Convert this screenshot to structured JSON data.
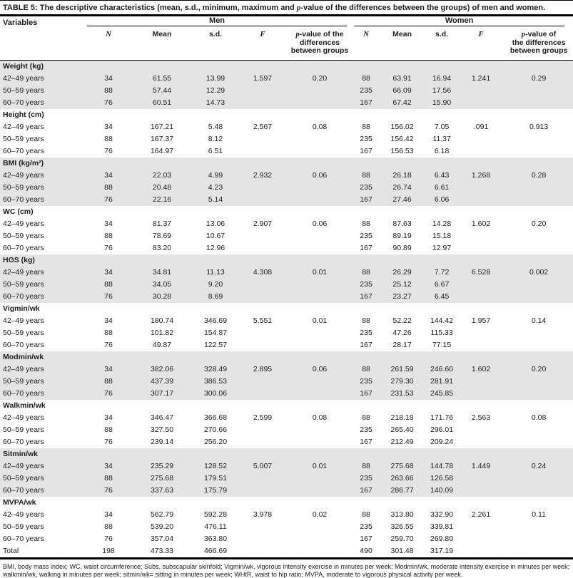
{
  "page": {
    "background_color": "#ffffff",
    "text_color": "#1d1d1b",
    "shade_color": "#e4e4e4"
  },
  "table": {
    "title": {
      "prefix": "TABLE 5:",
      "body_before_p": " The descriptive characteristics (mean, s.d., minimum, maximum and ",
      "p_italic": "p",
      "body_after_p": "-value of the differences between the groups) of men and women."
    },
    "header": {
      "variables": "Variables",
      "men": "Men",
      "women": "Women",
      "col_n": "N",
      "col_mean": "Mean",
      "col_sd": "s.d.",
      "col_f": "F",
      "p_char": "p",
      "men_p_lines": [
        "-value of the",
        "differences",
        "between groups"
      ],
      "women_p_lines": [
        "-value of",
        "the differences",
        "between groups"
      ]
    },
    "groups": [
      {
        "label": "Weight (kg)",
        "shaded": true,
        "rows": [
          {
            "label": "42–49 years",
            "men": [
              "34",
              "61.55",
              "13.99",
              "1.597",
              "0.20"
            ],
            "women": [
              "88",
              "63.91",
              "16.94",
              "1.241",
              "0.29"
            ]
          },
          {
            "label": "50–59 years",
            "men": [
              "88",
              "57.44",
              "12.29",
              "",
              ""
            ],
            "women": [
              "235",
              "66.09",
              "17.56",
              "",
              ""
            ]
          },
          {
            "label": "60–70 years",
            "men": [
              "76",
              "60.51",
              "14.73",
              "",
              ""
            ],
            "women": [
              "167",
              "67.42",
              "15.90",
              "",
              ""
            ]
          }
        ]
      },
      {
        "label": "Height (cm)",
        "shaded": false,
        "rows": [
          {
            "label": "42–49 years",
            "men": [
              "34",
              "167.21",
              "5.48",
              "2.567",
              "0.08"
            ],
            "women": [
              "88",
              "156.02",
              "7.05",
              ".091",
              "0.913"
            ]
          },
          {
            "label": "50–59 years",
            "men": [
              "88",
              "167.37",
              "8.12",
              "",
              ""
            ],
            "women": [
              "235",
              "156.42",
              "11.37",
              "",
              ""
            ]
          },
          {
            "label": "60–70 years",
            "men": [
              "76",
              "164.97",
              "6.51",
              "",
              ""
            ],
            "women": [
              "167",
              "156.53",
              "6.18",
              "",
              ""
            ]
          }
        ]
      },
      {
        "label": "BMI (kg/m²)",
        "shaded": true,
        "rows": [
          {
            "label": "42–49 years",
            "men": [
              "34",
              "22.03",
              "4.99",
              "2.932",
              "0.06"
            ],
            "women": [
              "88",
              "26.18",
              "6.43",
              "1.268",
              "0.28"
            ]
          },
          {
            "label": "50–59 years",
            "men": [
              "88",
              "20.48",
              "4.23",
              "",
              ""
            ],
            "women": [
              "235",
              "26.74",
              "6.61",
              "",
              ""
            ]
          },
          {
            "label": "60–70 years",
            "men": [
              "76",
              "22.16",
              "5.14",
              "",
              ""
            ],
            "women": [
              "167",
              "27.46",
              "6.06",
              "",
              ""
            ]
          }
        ]
      },
      {
        "label": "WC (cm)",
        "shaded": false,
        "rows": [
          {
            "label": "42–49 years",
            "men": [
              "34",
              "81.37",
              "13.06",
              "2.907",
              "0.06"
            ],
            "women": [
              "88",
              "87.63",
              "14.28",
              "1.602",
              "0.20"
            ]
          },
          {
            "label": "50–59 years",
            "men": [
              "88",
              "78.69",
              "10.67",
              "",
              ""
            ],
            "women": [
              "235",
              "89.19",
              "15.18",
              "",
              ""
            ]
          },
          {
            "label": "60–70 years",
            "men": [
              "76",
              "83.20",
              "12.96",
              "",
              ""
            ],
            "women": [
              "167",
              "90.89",
              "12.97",
              "",
              ""
            ]
          }
        ]
      },
      {
        "label": "HGS (kg)",
        "shaded": true,
        "rows": [
          {
            "label": "42–49 years",
            "men": [
              "34",
              "34.81",
              "11.13",
              "4.308",
              "0.01"
            ],
            "women": [
              "88",
              "26.29",
              "7.72",
              "6.528",
              "0.002"
            ]
          },
          {
            "label": "50–59 years",
            "men": [
              "88",
              "34.05",
              "9.20",
              "",
              ""
            ],
            "women": [
              "235",
              "25.12",
              "6.67",
              "",
              ""
            ]
          },
          {
            "label": "60–70 years",
            "men": [
              "76",
              "30.28",
              "8.69",
              "",
              ""
            ],
            "women": [
              "167",
              "23.27",
              "6.45",
              "",
              ""
            ]
          }
        ]
      },
      {
        "label": "Vigmin/wk",
        "shaded": false,
        "rows": [
          {
            "label": "42–49 years",
            "men": [
              "34",
              "180.74",
              "346.69",
              "5.551",
              "0.01"
            ],
            "women": [
              "88",
              "52.22",
              "144.42",
              "1.957",
              "0.14"
            ]
          },
          {
            "label": "50–59 years",
            "men": [
              "88",
              "101.82",
              "154.87",
              "",
              ""
            ],
            "women": [
              "235",
              "47.26",
              "115.33",
              "",
              ""
            ]
          },
          {
            "label": "60–70 years",
            "men": [
              "76",
              "49.87",
              "122.57",
              "",
              ""
            ],
            "women": [
              "167",
              "28.17",
              "77.15",
              "",
              ""
            ]
          }
        ]
      },
      {
        "label": "Modmin/wk",
        "shaded": true,
        "rows": [
          {
            "label": "42–49 years",
            "men": [
              "34",
              "382.06",
              "328.49",
              "2.895",
              "0.06"
            ],
            "women": [
              "88",
              "261.59",
              "246.60",
              "1.602",
              "0.20"
            ]
          },
          {
            "label": "50–59 years",
            "men": [
              "88",
              "437.39",
              "386.53",
              "",
              ""
            ],
            "women": [
              "235",
              "279.30",
              "281.91",
              "",
              ""
            ]
          },
          {
            "label": "60–70 years",
            "men": [
              "76",
              "307.17",
              "300.06",
              "",
              ""
            ],
            "women": [
              "167",
              "231.53",
              "245.85",
              "",
              ""
            ]
          }
        ]
      },
      {
        "label": "Walkmin/wk",
        "shaded": false,
        "rows": [
          {
            "label": "42–49 years",
            "men": [
              "34",
              "346.47",
              "366.68",
              "2.599",
              "0.08"
            ],
            "women": [
              "88",
              "218.18",
              "171.76",
              "2.563",
              "0.08"
            ]
          },
          {
            "label": "50–59 years",
            "men": [
              "88",
              "327.50",
              "270.66",
              "",
              ""
            ],
            "women": [
              "235",
              "265.40",
              "296.01",
              "",
              ""
            ]
          },
          {
            "label": "60–70 years",
            "men": [
              "76",
              "239.14",
              "256.20",
              "",
              ""
            ],
            "women": [
              "167",
              "212.49",
              "209.24",
              "",
              ""
            ]
          }
        ]
      },
      {
        "label": "Sitmin/wk",
        "shaded": true,
        "rows": [
          {
            "label": "42–49 years",
            "men": [
              "34",
              "235.29",
              "128.52",
              "5.007",
              "0.01"
            ],
            "women": [
              "88",
              "275.68",
              "144.78",
              "1.449",
              "0.24"
            ]
          },
          {
            "label": "50–59 years",
            "men": [
              "88",
              "275.68",
              "179.51",
              "",
              ""
            ],
            "women": [
              "235",
              "263.66",
              "126.58",
              "",
              ""
            ]
          },
          {
            "label": "60–70 years",
            "men": [
              "76",
              "337.63",
              "175.79",
              "",
              ""
            ],
            "women": [
              "167",
              "286.77",
              "140.09",
              "",
              ""
            ]
          }
        ]
      },
      {
        "label": "MVPA/wk",
        "shaded": false,
        "rows": [
          {
            "label": "42–49 years",
            "men": [
              "34",
              "562.79",
              "592.28",
              "3.978",
              "0.02"
            ],
            "women": [
              "88",
              "313.80",
              "332.90",
              "2.261",
              "0.11"
            ]
          },
          {
            "label": "50–59 years",
            "men": [
              "88",
              "539.20",
              "476.11",
              "",
              ""
            ],
            "women": [
              "235",
              "326.55",
              "339.81",
              "",
              ""
            ]
          },
          {
            "label": "60–70 years",
            "men": [
              "76",
              "357.04",
              "363.80",
              "",
              ""
            ],
            "women": [
              "167",
              "259.70",
              "269.80",
              "",
              ""
            ]
          }
        ]
      }
    ],
    "total_row": {
      "label": "Total",
      "shaded": false,
      "men": [
        "198",
        "473.33",
        "466.69",
        "",
        ""
      ],
      "women": [
        "490",
        "301.48",
        "317.19",
        "",
        ""
      ]
    },
    "footnote": "BMI, body mass index; WC, waist circumference; Subs, subscapular skinfold; Vigmin/wk, vigorous intensity exercise in minutes per week; Modmin/wk, moderate intensity exercise in minutes per week; walkmin/wk, walking in minutes per week; sitmin/wk= sitting in minutes per week; WHtR, waist to hip ratio; MVPA, moderate to vigorous physical activity per week."
  }
}
